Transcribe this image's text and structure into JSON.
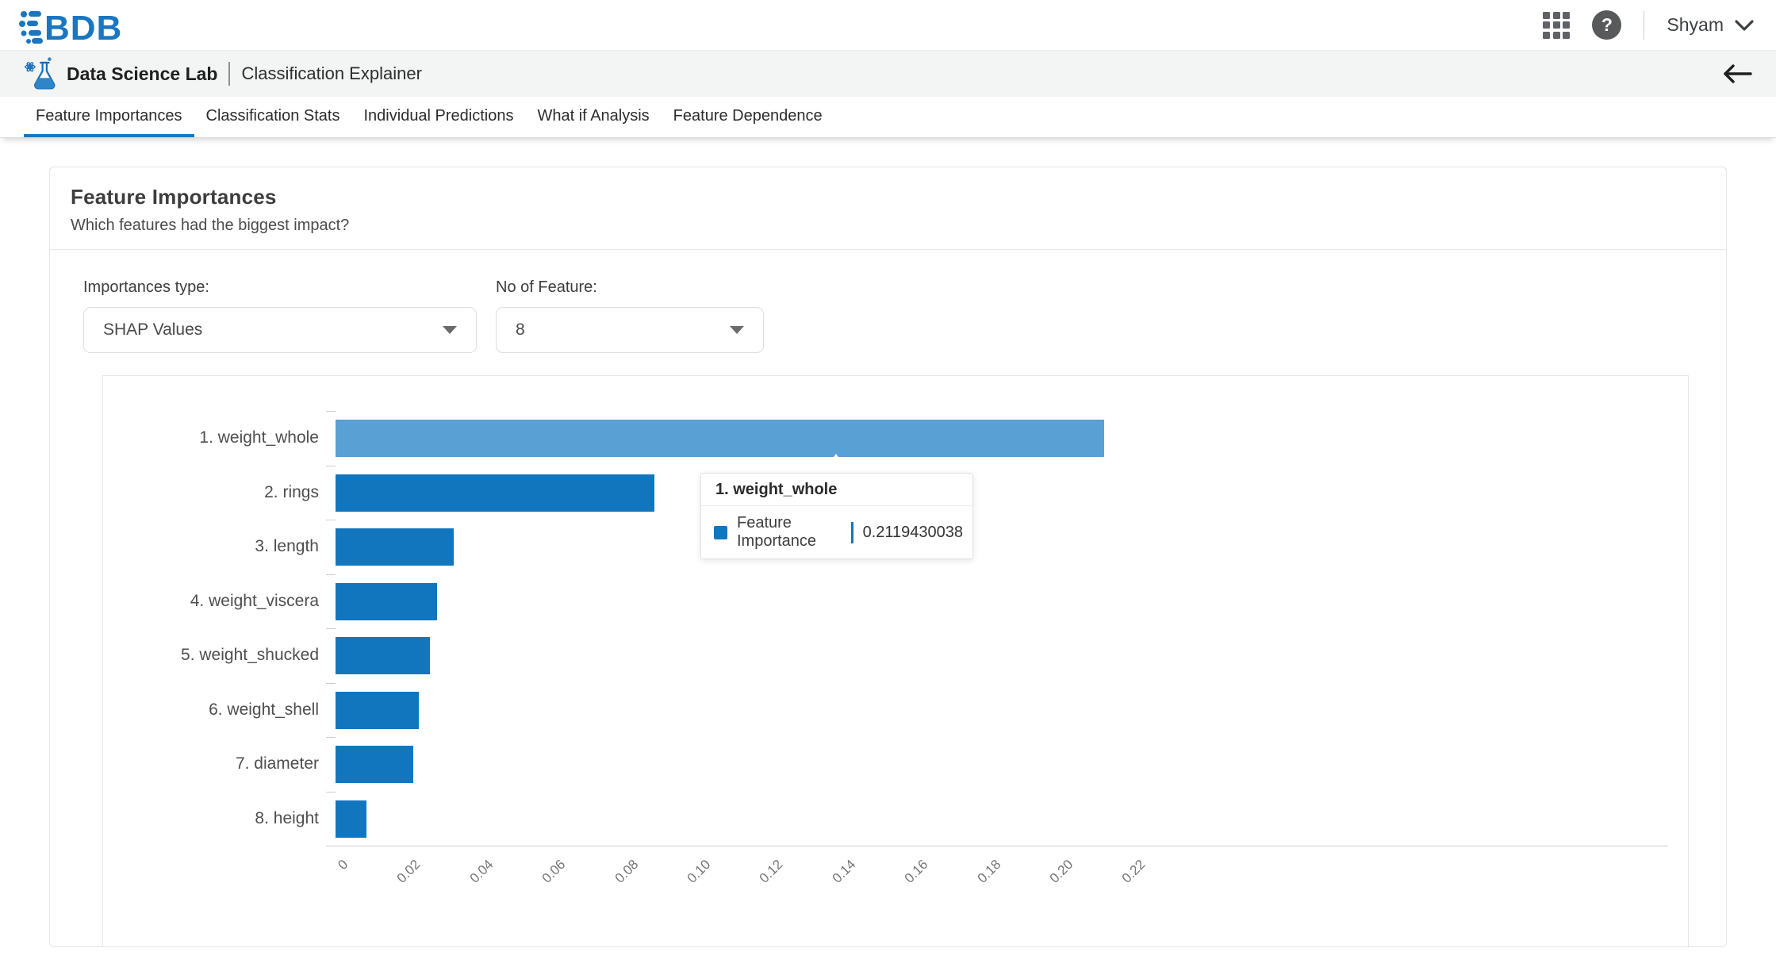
{
  "topbar": {
    "logo_text": "BDB",
    "user_name": "Shyam",
    "icons": {
      "apps": "grid-3x3",
      "help": "?",
      "user_caret": "chevron-down"
    }
  },
  "subheader": {
    "app_name": "Data Science Lab",
    "page_title": "Classification Explainer",
    "back_label": "back-arrow"
  },
  "tabs": [
    {
      "label": "Feature Importances",
      "active": true
    },
    {
      "label": "Classification Stats",
      "active": false
    },
    {
      "label": "Individual Predictions",
      "active": false
    },
    {
      "label": "What if Analysis",
      "active": false
    },
    {
      "label": "Feature Dependence",
      "active": false
    }
  ],
  "card": {
    "title": "Feature Importances",
    "subtitle": "Which features had the biggest impact?"
  },
  "controls": {
    "importances_type": {
      "label": "Importances type:",
      "value": "SHAP Values"
    },
    "no_of_feature": {
      "label": "No of Feature:",
      "value": "8"
    }
  },
  "tooltip": {
    "title": "1. weight_whole",
    "series_label": "Feature Importance",
    "value": "0.2119430038"
  },
  "chart_data": {
    "type": "bar",
    "orientation": "horizontal",
    "series_name": "Feature Importance",
    "categories": [
      "1. weight_whole",
      "2. rings",
      "3. length",
      "4. weight_viscera",
      "5. weight_shucked",
      "6. weight_shell",
      "7. diameter",
      "8. height"
    ],
    "values": [
      0.2119430038,
      0.088,
      0.0325,
      0.028,
      0.026,
      0.023,
      0.0215,
      0.0085
    ],
    "x_ticks": [
      "0",
      "0.02",
      "0.04",
      "0.06",
      "0.08",
      "0.10",
      "0.12",
      "0.14",
      "0.16",
      "0.18",
      "0.20",
      "0.22"
    ],
    "xlim": [
      0,
      0.22
    ],
    "grid": false,
    "legend": "none",
    "bar_color": "#1276be",
    "highlight_color": "#59a0d4",
    "highlighted_index": 0,
    "tick_label_rotation": 45
  }
}
